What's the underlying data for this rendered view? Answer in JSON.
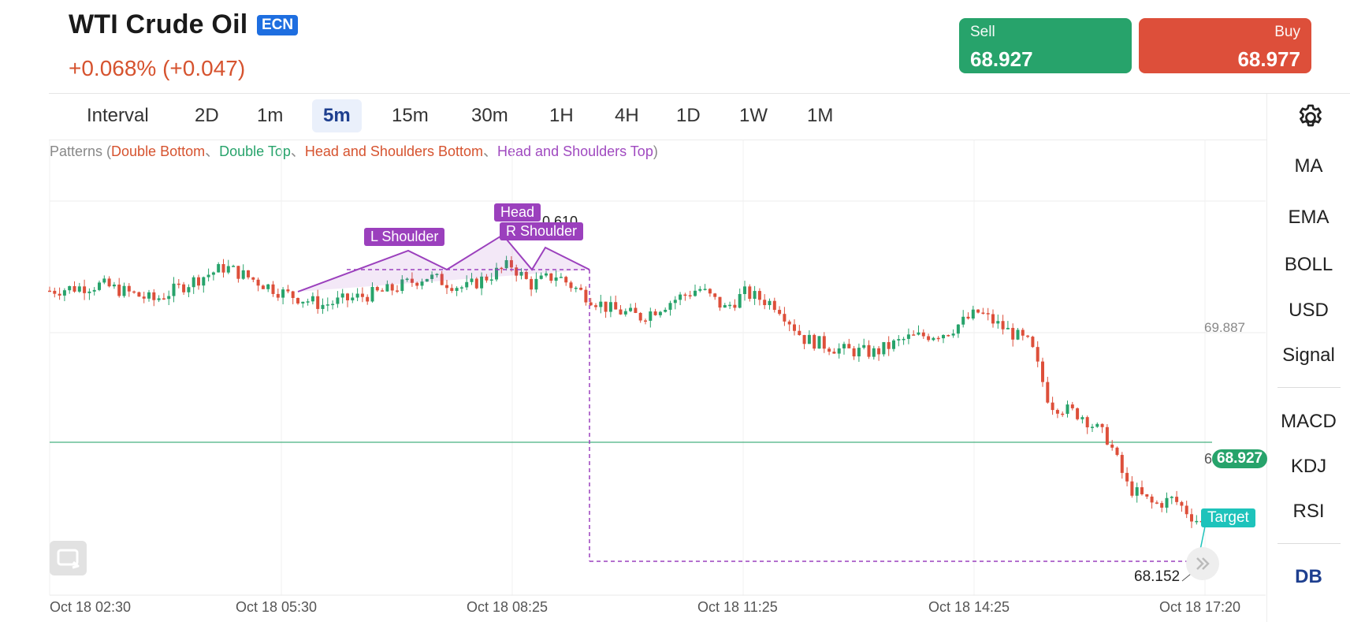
{
  "header": {
    "title": "WTI Crude Oil",
    "badge": "ECN",
    "change": "+0.068% (+0.047)"
  },
  "trade": {
    "sell_label": "Sell",
    "sell_price": "68.927",
    "buy_label": "Buy",
    "buy_price": "68.977"
  },
  "intervals": {
    "label": "Interval",
    "items": [
      "2D",
      "1m",
      "5m",
      "15m",
      "30m",
      "1H",
      "4H",
      "1D",
      "1W",
      "1M"
    ],
    "active": "5m"
  },
  "sidebar": {
    "overlays": [
      "MA",
      "EMA",
      "BOLL",
      "USD",
      "Signal"
    ],
    "oscillators": [
      "MACD",
      "KDJ",
      "RSI"
    ],
    "db": "DB"
  },
  "patterns": {
    "prefix": "Patterns (",
    "double_bottom": "Double Bottom",
    "sep1": "、",
    "double_top": "Double Top",
    "sep2": "、",
    "hs_bottom": "Head and Shoulders Bottom",
    "sep3": "、",
    "hs_top": "Head and Shoulders Top",
    "suffix": ")"
  },
  "annotations": {
    "l_shoulder": "L Shoulder",
    "head": "Head",
    "r_shoulder": "R Shoulder",
    "head_value": "0.610",
    "target": "Target",
    "target_price": "68.152"
  },
  "axis": {
    "price_labels": [
      "69.887"
    ],
    "current_price_left": "6",
    "current_price": "68.927",
    "time_labels": [
      "Oct 18 02:30",
      "Oct 18 05:30",
      "Oct 18 08:25",
      "Oct 18 11:25",
      "Oct 18 14:25",
      "Oct 18 17:20"
    ]
  },
  "colors": {
    "up": "#27a36b",
    "down": "#dd4f3a",
    "pattern": "#9b40bd",
    "target": "#1ec3bb",
    "accent": "#1e3f8f"
  },
  "icons": {
    "settings": "gear-icon",
    "reset": "reset-icon",
    "scroll": "double-chevron-right-icon"
  },
  "chart_data": {
    "type": "candlestick",
    "instrument": "WTI Crude Oil",
    "interval": "5m",
    "x_ticks": [
      "Oct 18 02:30",
      "Oct 18 05:30",
      "Oct 18 08:25",
      "Oct 18 11:25",
      "Oct 18 14:25",
      "Oct 18 17:20"
    ],
    "close_path": [
      {
        "t": "Oct 18 02:30",
        "price": 70.2
      },
      {
        "t": "Oct 18 03:10",
        "price": 70.25
      },
      {
        "t": "Oct 18 03:50",
        "price": 70.12
      },
      {
        "t": "Oct 18 04:20",
        "price": 70.28
      },
      {
        "t": "Oct 18 04:45",
        "price": 70.4
      },
      {
        "t": "Oct 18 05:30",
        "price": 70.18
      },
      {
        "t": "Oct 18 06:00",
        "price": 70.08
      },
      {
        "t": "Oct 18 06:50",
        "price": 70.2
      },
      {
        "t": "Oct 18 07:20",
        "price": 70.32
      },
      {
        "t": "Oct 18 07:50",
        "price": 70.22
      },
      {
        "t": "Oct 18 08:25",
        "price": 70.42
      },
      {
        "t": "Oct 18 08:40",
        "price": 70.25
      },
      {
        "t": "Oct 18 09:00",
        "price": 70.33
      },
      {
        "t": "Oct 18 09:20",
        "price": 70.18
      },
      {
        "t": "Oct 18 09:40",
        "price": 70.05
      },
      {
        "t": "Oct 18 10:05",
        "price": 69.98
      },
      {
        "t": "Oct 18 10:30",
        "price": 70.12
      },
      {
        "t": "Oct 18 10:50",
        "price": 70.22
      },
      {
        "t": "Oct 18 11:10",
        "price": 70.05
      },
      {
        "t": "Oct 18 11:25",
        "price": 70.18
      },
      {
        "t": "Oct 18 11:50",
        "price": 70.08
      },
      {
        "t": "Oct 18 12:10",
        "price": 69.8
      },
      {
        "t": "Oct 18 12:40",
        "price": 69.7
      },
      {
        "t": "Oct 18 13:05",
        "price": 69.68
      },
      {
        "t": "Oct 18 13:30",
        "price": 69.8
      },
      {
        "t": "Oct 18 14:00",
        "price": 69.85
      },
      {
        "t": "Oct 18 14:25",
        "price": 70.02
      },
      {
        "t": "Oct 18 14:45",
        "price": 69.88
      },
      {
        "t": "Oct 18 15:05",
        "price": 69.75
      },
      {
        "t": "Oct 18 15:20",
        "price": 69.25
      },
      {
        "t": "Oct 18 15:45",
        "price": 69.15
      },
      {
        "t": "Oct 18 16:05",
        "price": 68.95
      },
      {
        "t": "Oct 18 16:20",
        "price": 68.55
      },
      {
        "t": "Oct 18 16:40",
        "price": 68.4
      },
      {
        "t": "Oct 18 16:55",
        "price": 68.45
      },
      {
        "t": "Oct 18 17:10",
        "price": 68.3
      },
      {
        "t": "Oct 18 17:20",
        "price": 68.22
      }
    ],
    "reference_levels": {
      "label_price": 69.887,
      "current": 68.927,
      "target": 68.152,
      "head_label": "0.610"
    },
    "pattern": "Head and Shoulders Top",
    "pattern_points": {
      "l_shoulder": "Oct 18 07:20",
      "head": "Oct 18 08:25",
      "r_shoulder": "Oct 18 08:40"
    }
  }
}
